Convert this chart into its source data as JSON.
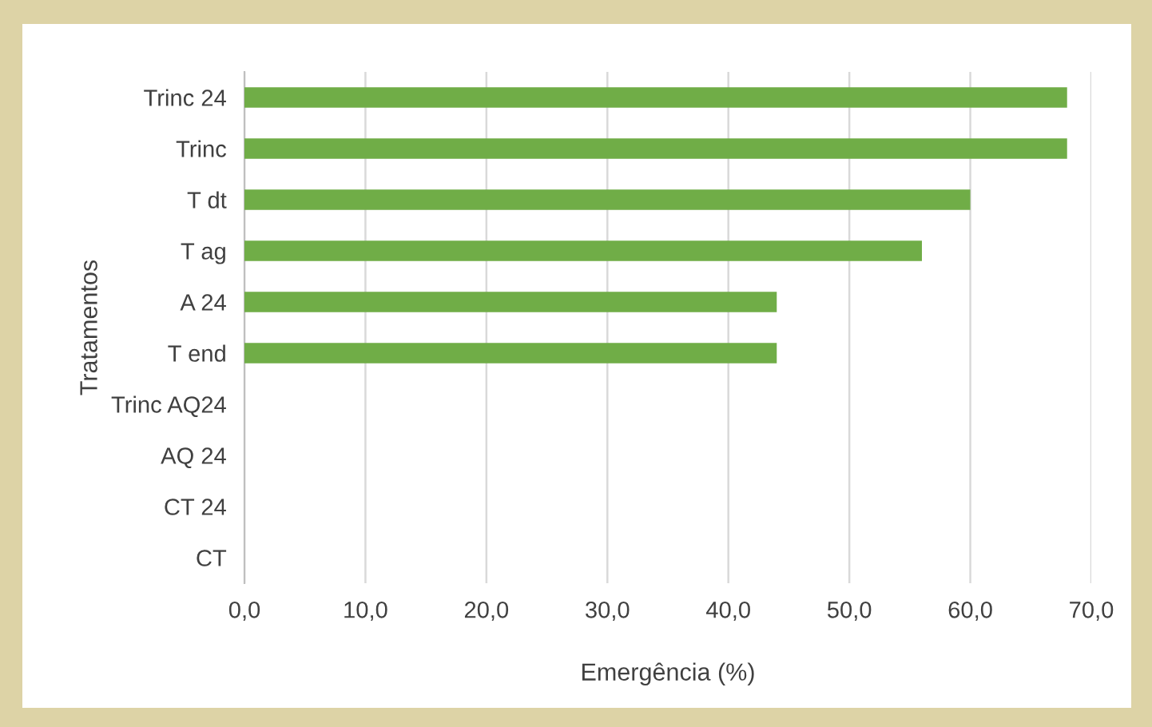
{
  "chart_data": {
    "type": "bar",
    "orientation": "horizontal",
    "xlabel": "Emergência (%)",
    "ylabel": "Tratamentos",
    "categories": [
      "Trinc 24",
      "Trinc",
      "T dt",
      "T ag",
      "A 24",
      "T end",
      "Trinc AQ24",
      "AQ 24",
      "CT 24",
      "CT"
    ],
    "values": [
      68,
      68,
      60,
      56,
      44,
      44,
      0,
      0,
      0,
      0
    ],
    "color": "#70ad47",
    "xlim": [
      0,
      70
    ],
    "xticks": [
      {
        "value": 0,
        "label": "0,0"
      },
      {
        "value": 10,
        "label": "10,0"
      },
      {
        "value": 20,
        "label": "20,0"
      },
      {
        "value": 30,
        "label": "30,0"
      },
      {
        "value": 40,
        "label": "40,0"
      },
      {
        "value": 50,
        "label": "50,0"
      },
      {
        "value": 60,
        "label": "60,0"
      },
      {
        "value": 70,
        "label": "70,0"
      }
    ],
    "grid": "x",
    "legend": false
  }
}
